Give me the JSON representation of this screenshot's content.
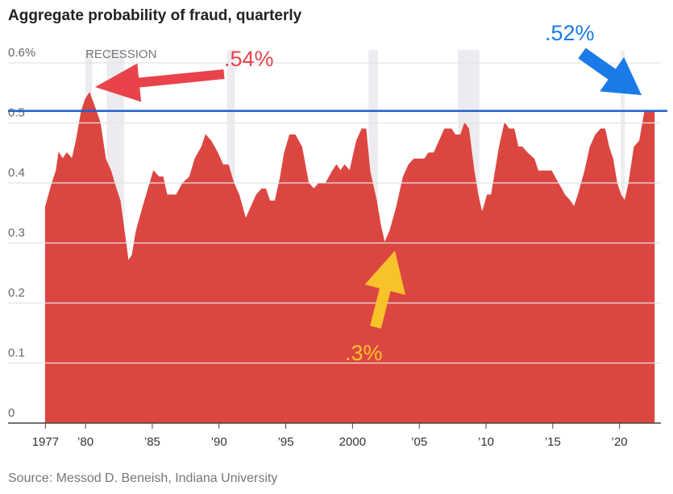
{
  "chart_data": {
    "type": "area",
    "title": "Aggregate probability of fraud, quarterly",
    "source": "Source: Messod D. Beneish, Indiana University",
    "recession_label": "RECESSION",
    "color": "#dc4641",
    "x": [
      1977.0,
      1977.5,
      1977.8,
      1978.0,
      1978.3,
      1978.6,
      1979.0,
      1979.3,
      1979.7,
      1980.0,
      1980.3,
      1980.8,
      1981.1,
      1981.5,
      1981.9,
      1982.3,
      1982.6,
      1982.9,
      1983.2,
      1983.5,
      1983.8,
      1984.3,
      1984.7,
      1985.1,
      1985.5,
      1985.8,
      1986.1,
      1986.4,
      1986.8,
      1987.3,
      1987.8,
      1988.2,
      1988.7,
      1989.0,
      1989.4,
      1989.9,
      1990.3,
      1990.7,
      1991.1,
      1991.5,
      1992.0,
      1992.4,
      1992.8,
      1993.2,
      1993.5,
      1993.8,
      1994.2,
      1994.6,
      1994.9,
      1995.3,
      1995.7,
      1996.2,
      1996.7,
      1997.1,
      1997.5,
      1998.0,
      1998.5,
      1998.8,
      1999.1,
      1999.4,
      1999.8,
      2000.3,
      2000.7,
      2001.0,
      2001.3,
      2001.8,
      2002.1,
      2002.4,
      2002.8,
      2003.3,
      2003.8,
      2004.2,
      2004.6,
      2005.0,
      2005.4,
      2005.7,
      2006.1,
      2006.5,
      2006.9,
      2007.4,
      2007.7,
      2008.1,
      2008.4,
      2008.7,
      2009.1,
      2009.4,
      2009.7,
      2010.1,
      2010.4,
      2010.7,
      2011.0,
      2011.4,
      2011.7,
      2012.1,
      2012.4,
      2012.7,
      2013.1,
      2013.6,
      2013.9,
      2014.5,
      2014.9,
      2015.4,
      2015.9,
      2016.3,
      2016.6,
      2016.9,
      2017.4,
      2017.8,
      2018.2,
      2018.6,
      2018.9,
      2019.2,
      2019.5,
      2019.8,
      2020.1,
      2020.4,
      2020.7,
      2021.1,
      2021.5,
      2021.9,
      2022.2,
      2022.6
    ],
    "values": [
      0.36,
      0.4,
      0.42,
      0.45,
      0.44,
      0.45,
      0.44,
      0.47,
      0.52,
      0.54,
      0.55,
      0.52,
      0.5,
      0.44,
      0.42,
      0.39,
      0.37,
      0.32,
      0.27,
      0.28,
      0.32,
      0.36,
      0.39,
      0.42,
      0.41,
      0.41,
      0.38,
      0.38,
      0.38,
      0.4,
      0.41,
      0.44,
      0.46,
      0.48,
      0.47,
      0.45,
      0.43,
      0.43,
      0.4,
      0.38,
      0.34,
      0.36,
      0.38,
      0.39,
      0.39,
      0.37,
      0.37,
      0.41,
      0.45,
      0.48,
      0.48,
      0.46,
      0.4,
      0.39,
      0.4,
      0.4,
      0.42,
      0.43,
      0.42,
      0.43,
      0.42,
      0.47,
      0.49,
      0.49,
      0.42,
      0.37,
      0.33,
      0.3,
      0.32,
      0.36,
      0.41,
      0.43,
      0.44,
      0.44,
      0.44,
      0.45,
      0.45,
      0.47,
      0.49,
      0.49,
      0.48,
      0.48,
      0.5,
      0.49,
      0.42,
      0.38,
      0.35,
      0.38,
      0.38,
      0.42,
      0.46,
      0.5,
      0.49,
      0.49,
      0.46,
      0.46,
      0.45,
      0.44,
      0.42,
      0.42,
      0.42,
      0.4,
      0.38,
      0.37,
      0.36,
      0.38,
      0.42,
      0.46,
      0.48,
      0.49,
      0.49,
      0.46,
      0.44,
      0.4,
      0.38,
      0.37,
      0.4,
      0.46,
      0.47,
      0.52,
      0.52,
      0.52
    ],
    "recessions": [
      [
        1980.0,
        1980.5
      ],
      [
        1981.6,
        1982.9
      ],
      [
        1990.6,
        1991.2
      ],
      [
        2001.2,
        2001.9
      ],
      [
        2007.9,
        2009.5
      ],
      [
        2020.1,
        2020.4
      ]
    ],
    "reference_line": 0.52,
    "xlim": [
      1974.2,
      2023.1
    ],
    "xticks": [
      1977,
      {
        "value": 1980,
        "label": "’80"
      },
      {
        "value": 1985,
        "label": "’85"
      },
      {
        "value": 1990,
        "label": "’90"
      },
      {
        "value": 1995,
        "label": "’95"
      },
      2000,
      {
        "value": 2005,
        "label": "’05"
      },
      {
        "value": 2010,
        "label": "’10"
      },
      {
        "value": 2015,
        "label": "’15"
      },
      {
        "value": 2020,
        "label": "’20"
      }
    ],
    "ylim": [
      0,
      0.6
    ],
    "yticks": [
      0,
      0.1,
      0.2,
      0.3,
      0.4,
      0.5,
      {
        "value": 0.6,
        "label": "0.6%"
      }
    ],
    "grid": true,
    "annotations": [
      {
        "text": ".54%",
        "color": "#e8434b"
      },
      {
        "text": ".52%",
        "color": "#1a7be8"
      },
      {
        "text": ".3%",
        "color": "#f8c22a"
      }
    ]
  }
}
